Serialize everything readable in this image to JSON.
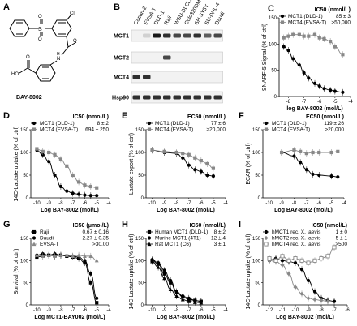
{
  "panel_a": {
    "label": "A",
    "compound": "BAY-8002"
  },
  "panel_b": {
    "label": "B",
    "lanes": [
      "Capan-2",
      "EVSA-T",
      "DLD-1",
      "Raji",
      "WSU-DLCL2",
      "Colo320DM",
      "SH-SY5Y",
      "SU-DHL-4",
      "Daudi"
    ],
    "rows": [
      "MCT1",
      "MCT2",
      "MCT4",
      "Hsp90"
    ],
    "bands": [
      [
        0,
        0.2,
        1,
        0.9,
        0.8,
        0.8,
        0.9,
        0.7,
        0.8
      ],
      [
        0,
        0,
        0,
        0.8,
        0,
        0,
        0,
        0,
        0
      ],
      [
        0.9,
        0.9,
        0,
        0,
        0,
        0,
        0,
        0,
        0
      ],
      [
        0.9,
        0.9,
        0.9,
        0.9,
        0.9,
        0.9,
        0.9,
        0.9,
        0.9
      ]
    ]
  },
  "chart_data": [
    {
      "id": "C",
      "type": "line",
      "ylabel": "SNARF-5 Signal (% of ctrl)",
      "xlabel": "log BAY-8002 (mol/L)",
      "xlim": [
        -8.6,
        -4
      ],
      "ylim": [
        0,
        150
      ],
      "xticks": [
        -8,
        -7,
        -6,
        -5,
        -4
      ],
      "yticks": [
        0,
        50,
        100,
        150
      ],
      "legend_header": "IC50 (nmol/L)",
      "series": [
        {
          "name": "MCT1 (DLD-1)",
          "value": "85 ± 3",
          "color": "#000000",
          "marker": "circle",
          "x": [
            -8.3,
            -8,
            -7.7,
            -7.3,
            -7,
            -6.7,
            -6.3,
            -6,
            -5.7,
            -5.3,
            -5,
            -4.5
          ],
          "y": [
            95,
            88,
            72,
            60,
            45,
            35,
            25,
            20,
            15,
            12,
            10,
            8
          ]
        },
        {
          "name": "MCT4 (EVSA-T)",
          "value": ">50,000",
          "color": "#888888",
          "marker": "square",
          "x": [
            -8.3,
            -8,
            -7.7,
            -7.3,
            -7,
            -6.7,
            -6.3,
            -6,
            -5.7,
            -5.3,
            -5,
            -4.5
          ],
          "y": [
            112,
            115,
            118,
            118,
            115,
            115,
            118,
            112,
            110,
            105,
            95,
            80
          ]
        }
      ]
    },
    {
      "id": "D",
      "type": "line",
      "ylabel": "14C-Lactate uptake (% of ctrl)",
      "xlabel": "Log BAY-8002 (mol/L)",
      "xlim": [
        -10.5,
        -4
      ],
      "ylim": [
        0,
        150
      ],
      "xticks": [
        -10,
        -9,
        -8,
        -7,
        -6,
        -5,
        -4
      ],
      "yticks": [
        0,
        50,
        100,
        150
      ],
      "legend_header": "IC50 (nmol/L)",
      "series": [
        {
          "name": "MCT1 (DLD-1)",
          "value": "8 ± 2",
          "color": "#000000",
          "marker": "circle",
          "x": [
            -10,
            -9.5,
            -9,
            -8.5,
            -8,
            -7.5,
            -7,
            -6.5,
            -6,
            -5.5,
            -5
          ],
          "y": [
            105,
            95,
            80,
            50,
            25,
            15,
            10,
            8,
            6,
            5,
            5
          ]
        },
        {
          "name": "MCT4 (EVSA-T)",
          "value": "694 ± 250",
          "color": "#888888",
          "marker": "square",
          "x": [
            -10,
            -9.5,
            -9,
            -8.5,
            -8,
            -7.5,
            -7,
            -6.5,
            -6,
            -5.5,
            -5
          ],
          "y": [
            108,
            102,
            100,
            95,
            85,
            70,
            50,
            35,
            28,
            25,
            22
          ]
        }
      ]
    },
    {
      "id": "E",
      "type": "line",
      "ylabel": "Lactate export (% of ctrl)",
      "xlabel": "Log BAY-8002 (mol/L)",
      "xlim": [
        -10.5,
        -4
      ],
      "ylim": [
        0,
        150
      ],
      "xticks": [
        -10,
        -9,
        -8,
        -7,
        -6,
        -5,
        -4
      ],
      "yticks": [
        0,
        50,
        100,
        150
      ],
      "legend_header": "EC50 (nmol/L)",
      "series": [
        {
          "name": "MCT1 (DLD-1)",
          "value": "77 ± 6",
          "color": "#000000",
          "marker": "circle",
          "x": [
            -10,
            -9,
            -8,
            -7.5,
            -7,
            -6.5,
            -6,
            -5.5,
            -5
          ],
          "y": [
            105,
            100,
            98,
            88,
            72,
            62,
            58,
            50,
            48
          ]
        },
        {
          "name": "MCT4 (EVSA-T)",
          "value": ">20,000",
          "color": "#888888",
          "marker": "square",
          "x": [
            -10,
            -9,
            -8,
            -7.5,
            -7,
            -6.5,
            -6,
            -5.5,
            -5
          ],
          "y": [
            105,
            102,
            100,
            98,
            95,
            88,
            82,
            75,
            65
          ]
        }
      ]
    },
    {
      "id": "F",
      "type": "line",
      "ylabel": "ECAR (% of ctrl)",
      "xlabel": "Log BAY-8002 (mol/L)",
      "xlim": [
        -10.5,
        -4
      ],
      "ylim": [
        0,
        150
      ],
      "xticks": [
        -10,
        -9,
        -8,
        -7,
        -6,
        -5,
        -4
      ],
      "yticks": [
        0,
        50,
        100,
        150
      ],
      "legend_header": "EC50 (nmol/L)",
      "series": [
        {
          "name": "MCT1 (DLD-1)",
          "value": "119 ± 26",
          "color": "#000000",
          "marker": "circle",
          "x": [
            -9,
            -8,
            -7.5,
            -7,
            -6.5,
            -6,
            -5,
            -4.5
          ],
          "y": [
            100,
            92,
            78,
            62,
            52,
            50,
            48,
            46
          ]
        },
        {
          "name": "MCT4 (EVSA-T)",
          "value": ">20,000",
          "color": "#888888",
          "marker": "square",
          "x": [
            -9,
            -8,
            -7.5,
            -7,
            -6.5,
            -6,
            -5,
            -4.5
          ],
          "y": [
            100,
            105,
            102,
            98,
            100,
            100,
            100,
            102
          ]
        }
      ]
    },
    {
      "id": "G",
      "type": "line",
      "ylabel": "Survival (% of ctrl)",
      "xlabel": "Log MCT1-BAY002 (mol/L)",
      "xlim": [
        -10.5,
        -4
      ],
      "ylim": [
        0,
        150
      ],
      "xticks": [
        -10,
        -9,
        -8,
        -7,
        -6,
        -5,
        -4
      ],
      "yticks": [
        0,
        50,
        100,
        150
      ],
      "legend_header": "IC50 (μmol/L)",
      "series": [
        {
          "name": "Raji",
          "value": "0.67 ± 0.16",
          "color": "#000000",
          "marker": "square",
          "x": [
            -10,
            -9.5,
            -9,
            -8.5,
            -8,
            -7.5,
            -7,
            -6.5,
            -6,
            -5.5,
            -5
          ],
          "y": [
            108,
            110,
            112,
            110,
            112,
            110,
            108,
            105,
            95,
            50,
            5
          ]
        },
        {
          "name": "Daudi",
          "value": "2.27 ± 0.35",
          "color": "#000000",
          "marker": "circle",
          "x": [
            -10,
            -9.5,
            -9,
            -8.5,
            -8,
            -7.5,
            -7,
            -6.5,
            -6,
            -5.5,
            -5
          ],
          "y": [
            112,
            115,
            112,
            115,
            112,
            110,
            110,
            108,
            100,
            70,
            15
          ]
        },
        {
          "name": "EVSA-T",
          "value": ">30.00",
          "color": "#888888",
          "marker": "triangle",
          "x": [
            -10,
            -9.5,
            -9,
            -8.5,
            -8,
            -7.5,
            -7,
            -6.5,
            -6,
            -5.5,
            -5
          ],
          "y": [
            112,
            110,
            112,
            110,
            112,
            112,
            110,
            112,
            110,
            110,
            100
          ]
        }
      ]
    },
    {
      "id": "H",
      "type": "line",
      "ylabel": "14C-Lactate uptake (% of ctrl)",
      "xlabel": "Log BAY-8002 (mol/L)",
      "xlim": [
        -10.5,
        -4
      ],
      "ylim": [
        0,
        150
      ],
      "xticks": [
        -10,
        -9,
        -8,
        -7,
        -6,
        -5,
        -4
      ],
      "yticks": [
        0,
        50,
        100,
        150
      ],
      "legend_header": "IC50 (nmol/L)",
      "series": [
        {
          "name": "Human MCT1 (DLD-1)",
          "value": "8 ± 2",
          "color": "#000000",
          "marker": "square",
          "x": [
            -10,
            -9.5,
            -9,
            -8.5,
            -8,
            -7.5,
            -7,
            -6.5,
            -6
          ],
          "y": [
            100,
            92,
            70,
            50,
            28,
            18,
            12,
            10,
            8
          ]
        },
        {
          "name": "Murine MCT1 (4T1)",
          "value": "12 ± 4",
          "color": "#000000",
          "marker": "circle",
          "x": [
            -10,
            -9.5,
            -9,
            -8.5,
            -8,
            -7.5,
            -7,
            -6.5,
            -6
          ],
          "y": [
            102,
            95,
            78,
            55,
            30,
            20,
            15,
            10,
            8
          ]
        },
        {
          "name": "Rat MCT1 (C6)",
          "value": "3 ± 1",
          "color": "#000000",
          "marker": "triangle",
          "x": [
            -10,
            -9.5,
            -9,
            -8.5,
            -8,
            -7.5,
            -7,
            -6.5,
            -6
          ],
          "y": [
            98,
            85,
            60,
            35,
            20,
            12,
            8,
            6,
            5
          ]
        }
      ]
    },
    {
      "id": "I",
      "type": "line",
      "ylabel": "14C-Lactate uptake (% of ctrl)",
      "xlabel": "Log BAY-8002 (mol/L)",
      "xlim": [
        -12.5,
        -6
      ],
      "ylim": [
        0,
        150
      ],
      "xticks": [
        -12,
        -11,
        -10,
        -9,
        -8,
        -7,
        -6
      ],
      "yticks": [
        0,
        50,
        100,
        150
      ],
      "legend_header": "IC50 (nmol/L)",
      "series": [
        {
          "name": "hMCT1 rec. X. laevis",
          "value": "1 ± 0",
          "color": "#000000",
          "marker": "circle",
          "x": [
            -12,
            -11.5,
            -11,
            -10.5,
            -10,
            -9.5,
            -9,
            -8.5,
            -8,
            -7.5,
            -7
          ],
          "y": [
            100,
            105,
            100,
            98,
            95,
            80,
            55,
            30,
            15,
            10,
            8
          ]
        },
        {
          "name": "hMCT2 rec. X. laevis",
          "value": "5 ± 1",
          "color": "#888888",
          "marker": "diamond",
          "x": [
            -12,
            -11.5,
            -11,
            -10.5,
            -10,
            -9.5,
            -9,
            -8.5,
            -8,
            -7.5
          ],
          "y": [
            100,
            98,
            90,
            70,
            40,
            25,
            15,
            12,
            10,
            8
          ]
        },
        {
          "name": "hMCT4 rec. X. laevis",
          "value": ">500",
          "color": "#888888",
          "marker": "square-open",
          "x": [
            -12,
            -11.5,
            -11,
            -10.5,
            -10,
            -9.5,
            -9,
            -8.5,
            -8,
            -7.5,
            -7
          ],
          "y": [
            105,
            100,
            110,
            100,
            105,
            100,
            95,
            100,
            105,
            110,
            130
          ]
        }
      ]
    }
  ]
}
